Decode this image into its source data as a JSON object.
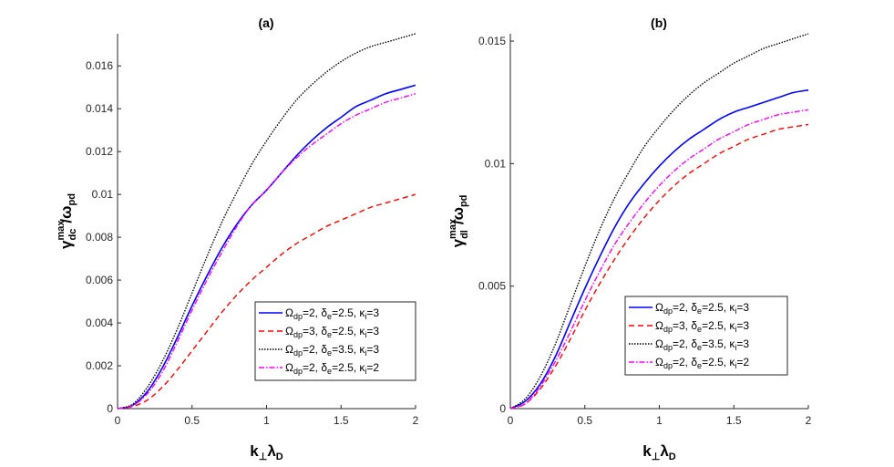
{
  "chart_data": [
    {
      "type": "line",
      "title": "(a)",
      "xlabel": {
        "main": "k",
        "sub": "⊥",
        "rest": "λ",
        "sub2": "D"
      },
      "ylabel": {
        "sym": "γ",
        "sup": "max",
        "sub": "dc",
        "rest": "/ω",
        "sub2": "pd"
      },
      "xlim": [
        0,
        2
      ],
      "ylim": [
        0,
        0.0175
      ],
      "xticks": [
        "0",
        "0.5",
        "1",
        "1.5",
        "2"
      ],
      "xtick_values": [
        0,
        0.5,
        1,
        1.5,
        2
      ],
      "yticks": [
        "0",
        "0.002",
        "0.004",
        "0.006",
        "0.008",
        "0.01",
        "0.012",
        "0.014",
        "0.016"
      ],
      "ytick_values": [
        0,
        0.002,
        0.004,
        0.006,
        0.008,
        0.01,
        0.012,
        0.014,
        0.016
      ],
      "grid": false,
      "legend_position": "bottom-right",
      "x": [
        0,
        0.1,
        0.2,
        0.3,
        0.4,
        0.5,
        0.6,
        0.7,
        0.8,
        0.9,
        1.0,
        1.1,
        1.2,
        1.3,
        1.4,
        1.5,
        1.6,
        1.7,
        1.8,
        1.9,
        2.0
      ],
      "series": [
        {
          "color": "#0000ff",
          "dash": "solid",
          "width": 1.6,
          "legend": [
            [
              "Ω",
              "dp",
              "=2,  "
            ],
            [
              "δ",
              "e",
              "=2.5,  "
            ],
            [
              "κ",
              "i",
              "=3"
            ]
          ],
          "values": [
            0,
            0.00015,
            0.0008,
            0.0019,
            0.0033,
            0.0048,
            0.0062,
            0.0075,
            0.0086,
            0.0095,
            0.0102,
            0.011,
            0.0118,
            0.0125,
            0.0131,
            0.0136,
            0.0141,
            0.0144,
            0.0147,
            0.0149,
            0.0151
          ]
        },
        {
          "color": "#ff0000",
          "dash": "6,4",
          "width": 1.4,
          "legend": [
            [
              "Ω",
              "dp",
              "=3,  "
            ],
            [
              "δ",
              "e",
              "=2.5,  "
            ],
            [
              "κ",
              "i",
              "=3"
            ]
          ],
          "values": [
            0,
            0.0001,
            0.0004,
            0.001,
            0.0018,
            0.0027,
            0.0036,
            0.0045,
            0.0053,
            0.006,
            0.0066,
            0.0072,
            0.0077,
            0.0081,
            0.0085,
            0.0088,
            0.0091,
            0.0094,
            0.0096,
            0.0098,
            0.01
          ]
        },
        {
          "color": "#000000",
          "dash": "1.5,1.5",
          "width": 1.4,
          "legend": [
            [
              "Ω",
              "dp",
              "=2,  "
            ],
            [
              "δ",
              "e",
              "=3.5,  "
            ],
            [
              "κ",
              "i",
              "=3"
            ]
          ],
          "values": [
            0,
            0.0002,
            0.001,
            0.0022,
            0.0037,
            0.0054,
            0.0071,
            0.0087,
            0.0101,
            0.0114,
            0.0125,
            0.0135,
            0.0144,
            0.0151,
            0.0157,
            0.0162,
            0.0166,
            0.0169,
            0.0171,
            0.0173,
            0.0175
          ]
        },
        {
          "color": "#ff00ff",
          "dash": "6,2,1.5,2",
          "width": 1.4,
          "legend": [
            [
              "Ω",
              "dp",
              "=2,  "
            ],
            [
              "δ",
              "e",
              "=2.5,  "
            ],
            [
              "κ",
              "i",
              "=2"
            ]
          ],
          "values": [
            0,
            0.00013,
            0.0007,
            0.0017,
            0.0031,
            0.0046,
            0.006,
            0.0073,
            0.0085,
            0.0095,
            0.0102,
            0.011,
            0.0117,
            0.0123,
            0.0128,
            0.0133,
            0.0137,
            0.014,
            0.0143,
            0.0145,
            0.0147
          ]
        }
      ]
    },
    {
      "type": "line",
      "title": "(b)",
      "xlabel": {
        "main": "k",
        "sub": "⊥",
        "rest": "λ",
        "sub2": "D"
      },
      "ylabel": {
        "sym": "γ",
        "sup": "max",
        "sub": "dl",
        "rest": "/ω",
        "sub2": "pd"
      },
      "xlim": [
        0,
        2
      ],
      "ylim": [
        0,
        0.0153
      ],
      "xticks": [
        "0",
        "0.5",
        "1",
        "1.5",
        "2"
      ],
      "xtick_values": [
        0,
        0.5,
        1,
        1.5,
        2
      ],
      "yticks": [
        "0",
        "0.005",
        "0.01",
        "0.015"
      ],
      "ytick_values": [
        0,
        0.005,
        0.01,
        0.015
      ],
      "grid": false,
      "legend_position": "center-right",
      "x": [
        0,
        0.1,
        0.2,
        0.3,
        0.4,
        0.5,
        0.6,
        0.7,
        0.8,
        0.9,
        1.0,
        1.1,
        1.2,
        1.3,
        1.4,
        1.5,
        1.6,
        1.7,
        1.8,
        1.9,
        2.0
      ],
      "series": [
        {
          "color": "#0000ff",
          "dash": "solid",
          "width": 1.6,
          "legend": [
            [
              "Ω",
              "dp",
              "=2,  "
            ],
            [
              "δ",
              "e",
              "=2.5,  "
            ],
            [
              "κ",
              "i",
              "=3"
            ]
          ],
          "values": [
            0,
            0.0003,
            0.001,
            0.0021,
            0.0035,
            0.0049,
            0.0062,
            0.0074,
            0.0084,
            0.0092,
            0.0099,
            0.0105,
            0.011,
            0.0114,
            0.0118,
            0.0121,
            0.0123,
            0.0125,
            0.0127,
            0.0129,
            0.013
          ]
        },
        {
          "color": "#ff0000",
          "dash": "6,4",
          "width": 1.4,
          "legend": [
            [
              "Ω",
              "dp",
              "=3,  "
            ],
            [
              "δ",
              "e",
              "=2.5,  "
            ],
            [
              "κ",
              "i",
              "=3"
            ]
          ],
          "values": [
            0,
            0.0002,
            0.0008,
            0.0017,
            0.0028,
            0.004,
            0.0051,
            0.0061,
            0.007,
            0.0078,
            0.0085,
            0.0091,
            0.0096,
            0.01,
            0.0104,
            0.0107,
            0.011,
            0.0112,
            0.0114,
            0.0115,
            0.0116
          ]
        },
        {
          "color": "#000000",
          "dash": "1.5,1.5",
          "width": 1.4,
          "legend": [
            [
              "Ω",
              "dp",
              "=2,  "
            ],
            [
              "δ",
              "e",
              "=3.5,  "
            ],
            [
              "κ",
              "i",
              "=3"
            ]
          ],
          "values": [
            0,
            0.0004,
            0.0013,
            0.0026,
            0.0042,
            0.0058,
            0.0073,
            0.0086,
            0.0097,
            0.0107,
            0.0115,
            0.0122,
            0.0128,
            0.0133,
            0.0137,
            0.0141,
            0.0144,
            0.0147,
            0.0149,
            0.0151,
            0.0153
          ]
        },
        {
          "color": "#ff00ff",
          "dash": "6,2,1.5,2",
          "width": 1.4,
          "legend": [
            [
              "Ω",
              "dp",
              "=2,  "
            ],
            [
              "δ",
              "e",
              "=2.5,  "
            ],
            [
              "κ",
              "i",
              "=2"
            ]
          ],
          "values": [
            0,
            0.0002,
            0.0009,
            0.0019,
            0.0031,
            0.0044,
            0.0056,
            0.0067,
            0.0076,
            0.0084,
            0.0091,
            0.0097,
            0.0102,
            0.0106,
            0.011,
            0.0113,
            0.0116,
            0.0118,
            0.012,
            0.0121,
            0.0122
          ]
        }
      ]
    }
  ]
}
